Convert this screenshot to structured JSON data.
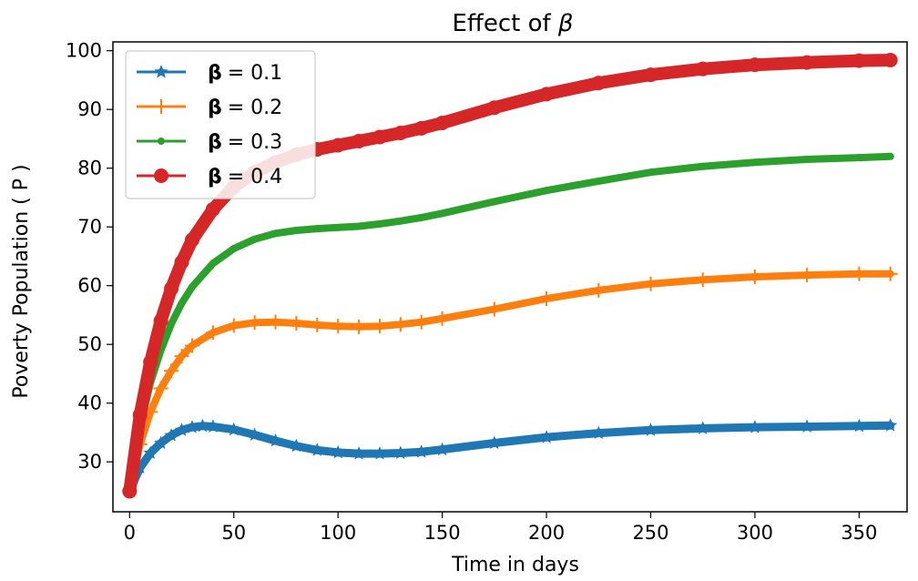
{
  "chart_data": {
    "type": "line",
    "title_prefix": "Effect of ",
    "title_symbol": "β",
    "xlabel": "Time in days",
    "ylabel": "Poverty Population ( P )",
    "xlim": [
      -8,
      373
    ],
    "ylim": [
      21.5,
      101.5
    ],
    "xticks": [
      0,
      50,
      100,
      150,
      200,
      250,
      300,
      350
    ],
    "yticks": [
      30,
      40,
      50,
      60,
      70,
      80,
      90,
      100
    ],
    "legend_position": "upper left",
    "series": [
      {
        "name": "= 0.1",
        "legend_symbol": "β",
        "color": "#1f77b4",
        "marker": "star",
        "x": [
          0,
          5,
          10,
          15,
          20,
          25,
          30,
          35,
          40,
          50,
          60,
          70,
          80,
          90,
          100,
          110,
          120,
          130,
          140,
          150,
          175,
          200,
          225,
          250,
          275,
          300,
          325,
          350,
          365
        ],
        "y": [
          25.0,
          29.0,
          31.5,
          33.2,
          34.5,
          35.4,
          35.9,
          36.1,
          36.0,
          35.5,
          34.6,
          33.6,
          32.7,
          32.0,
          31.6,
          31.4,
          31.4,
          31.5,
          31.7,
          32.1,
          33.2,
          34.2,
          34.9,
          35.4,
          35.7,
          35.9,
          36.0,
          36.1,
          36.2
        ]
      },
      {
        "name": "= 0.2",
        "legend_symbol": "β",
        "color": "#ff7f0e",
        "marker": "plus",
        "x": [
          0,
          5,
          10,
          15,
          20,
          25,
          30,
          40,
          50,
          60,
          70,
          80,
          90,
          100,
          110,
          120,
          130,
          140,
          150,
          175,
          200,
          225,
          250,
          275,
          300,
          325,
          350,
          365
        ],
        "y": [
          25.0,
          33.0,
          38.5,
          42.5,
          45.5,
          48.0,
          49.8,
          52.0,
          53.2,
          53.7,
          53.8,
          53.6,
          53.3,
          53.1,
          53.0,
          53.1,
          53.4,
          53.8,
          54.4,
          56.0,
          57.8,
          59.2,
          60.3,
          61.0,
          61.5,
          61.8,
          62.0,
          62.0
        ]
      },
      {
        "name": "= 0.3",
        "legend_symbol": "β",
        "color": "#2ca02c",
        "marker": "point",
        "x": [
          0,
          5,
          10,
          15,
          20,
          25,
          30,
          40,
          50,
          60,
          70,
          80,
          90,
          100,
          110,
          120,
          130,
          140,
          150,
          175,
          200,
          225,
          250,
          275,
          300,
          325,
          350,
          365
        ],
        "y": [
          25.0,
          36.0,
          43.5,
          49.0,
          53.5,
          57.0,
          59.8,
          63.8,
          66.3,
          67.9,
          68.9,
          69.4,
          69.7,
          69.9,
          70.1,
          70.5,
          71.0,
          71.6,
          72.3,
          74.3,
          76.2,
          77.8,
          79.3,
          80.3,
          81.0,
          81.5,
          81.8,
          82.0
        ]
      },
      {
        "name": "= 0.4",
        "legend_symbol": "β",
        "color": "#d62728",
        "marker": "circle",
        "x": [
          0,
          5,
          10,
          15,
          20,
          25,
          30,
          40,
          50,
          60,
          70,
          80,
          90,
          100,
          110,
          120,
          130,
          140,
          150,
          175,
          200,
          225,
          250,
          275,
          300,
          325,
          350,
          365
        ],
        "y": [
          25.0,
          38.0,
          47.0,
          54.0,
          59.5,
          64.0,
          67.8,
          73.0,
          76.8,
          79.3,
          81.0,
          82.3,
          83.2,
          83.9,
          84.6,
          85.3,
          86.0,
          86.8,
          87.7,
          90.3,
          92.6,
          94.5,
          95.9,
          96.9,
          97.6,
          98.0,
          98.3,
          98.4
        ]
      }
    ]
  }
}
